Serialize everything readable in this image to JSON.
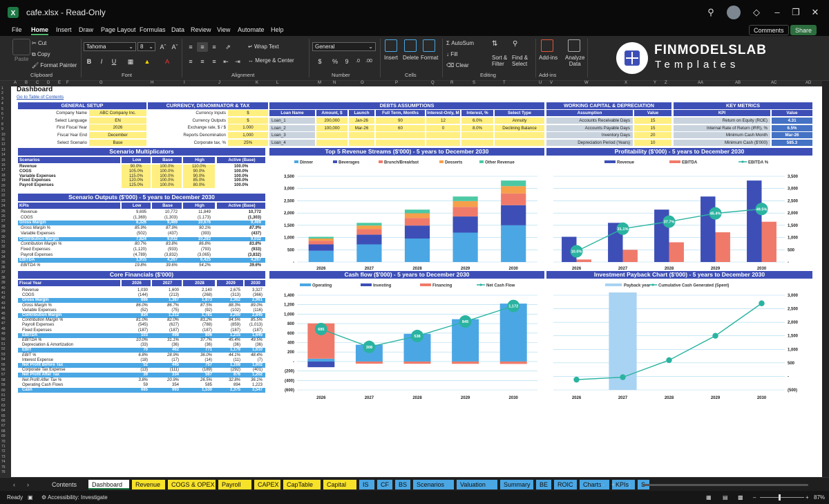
{
  "window": {
    "filename": "cafe.xlsx",
    "separator": "-",
    "mode": "Read-Only"
  },
  "menu": {
    "items": [
      "File",
      "Home",
      "Insert",
      "Draw",
      "Page Layout",
      "Formulas",
      "Data",
      "Review",
      "View",
      "Automate",
      "Help"
    ],
    "active": "Home",
    "comments": "Comments",
    "share": "Share"
  },
  "ribbon": {
    "paste": "Paste",
    "cut": "Cut",
    "copy": "Copy",
    "format_painter": "Format Painter",
    "clipboard": "Clipboard",
    "font_name": "Tahoma",
    "font_size": "8",
    "font": "Font",
    "alignment": "Alignment",
    "wrap_text": "Wrap Text",
    "merge_center": "Merge & Center",
    "number_format": "General",
    "number": "Number",
    "insert": "Insert",
    "delete": "Delete",
    "format": "Format",
    "cells": "Cells",
    "autosum": "AutoSum",
    "fill": "Fill",
    "clear": "Clear",
    "sort_filter": "Sort &\nFilter",
    "find_select": "Find &\nSelect",
    "editing": "Editing",
    "addins": "Add-ins",
    "analyze": "Analyze\nData",
    "logo_main": "FINMODELSLAB",
    "logo_sub": "Templates"
  },
  "columns": [
    "A",
    "B",
    "C",
    "D",
    "E",
    "F",
    "G",
    "H",
    "I",
    "J",
    "K",
    "L",
    "M",
    "N",
    "O",
    "P",
    "Q",
    "R",
    "S",
    "T",
    "U",
    "V",
    "W",
    "X",
    "Y",
    "Z",
    "AA",
    "AB",
    "AC",
    "AD"
  ],
  "sheet": {
    "title": "Dashboard",
    "toc_link": "Go to Table of Contents"
  },
  "general_setup": {
    "title": "GENERAL SETUP",
    "rows": [
      [
        "Company Name",
        "ABC Company Inc."
      ],
      [
        "Select Language",
        "EN"
      ],
      [
        "First Fiscal Year",
        "2026"
      ],
      [
        "Fiscal Year End",
        "December"
      ],
      [
        "Select Scenario",
        "Base"
      ]
    ]
  },
  "currency": {
    "title": "CURRENCY, DENOMINATOR & TAX",
    "rows": [
      [
        "Currency Inputs",
        "$"
      ],
      [
        "Currency Outputs",
        "$"
      ],
      [
        "Exchange rate, $ / $",
        "1.000"
      ],
      [
        "Reports Denomination",
        "1,000"
      ],
      [
        "Corporate tax, %",
        "25%"
      ]
    ]
  },
  "debts": {
    "title": "DEBTS ASSUMPTIONS",
    "headers": [
      "Loan Name",
      "Amount, $",
      "Launch",
      "Full Term, Months",
      "Interest-Only, M",
      "Interest, %",
      "Select Type"
    ],
    "rows": [
      [
        "Loan_1",
        "200,000",
        "Jan-26",
        "90",
        "12",
        "6.0%",
        "Annuity"
      ],
      [
        "Loan_2",
        "100,000",
        "Mar-26",
        "60",
        "0",
        "8.0%",
        "Declining Balance"
      ],
      [
        "Loan_3",
        "",
        "",
        "",
        "",
        "",
        ""
      ],
      [
        "Loan_4",
        "",
        "",
        "",
        "",
        "",
        ""
      ]
    ]
  },
  "working_capital": {
    "title": "WORKING CAPITAL & DEPRECIATION",
    "headers": [
      "Assumption",
      "Value"
    ],
    "rows": [
      [
        "Accounts Receivable Days",
        "15"
      ],
      [
        "Accounts Payable Days",
        "15"
      ],
      [
        "Inventory Days",
        "20"
      ],
      [
        "Depreciation Period (Years)",
        "10"
      ]
    ]
  },
  "key_metrics": {
    "title": "KEY METRICS",
    "headers": [
      "KPI",
      "Value"
    ],
    "rows": [
      [
        "Return on Equity (ROE)",
        "4.31"
      ],
      [
        "Internal Rate of Return (IRR), %",
        "6.5%"
      ],
      [
        "Minimum Cash Month",
        "Mar-26"
      ],
      [
        "Minimum Cash ($'000)",
        "585.3"
      ]
    ]
  },
  "scenario_multipliers": {
    "title": "Scenario Multiplicators",
    "headers": [
      "Scenarios",
      "Low",
      "Base",
      "High",
      "Active (Base)"
    ],
    "rows": [
      [
        "Revenue",
        "90.0%",
        "100.0%",
        "110.0%",
        "100.0%"
      ],
      [
        "COGS",
        "105.0%",
        "100.0%",
        "90.0%",
        "100.0%"
      ],
      [
        "Variable Expenses",
        "115.0%",
        "100.0%",
        "90.0%",
        "100.0%"
      ],
      [
        "Fixed Expenses",
        "120.0%",
        "100.0%",
        "85.0%",
        "100.0%"
      ],
      [
        "Payroll Expenses",
        "125.0%",
        "100.0%",
        "80.0%",
        "100.0%"
      ]
    ]
  },
  "scenario_outputs": {
    "title": "Scenario Outputs ($'000) - 5 years to December 2030",
    "headers": [
      "KPIs",
      "Low",
      "Base",
      "High",
      "Active (Base)"
    ],
    "rows": [
      [
        "Revenue",
        "9,695",
        "10,772",
        "11,849",
        "10,772",
        ""
      ],
      [
        "COGS",
        "(1,369)",
        "(1,303)",
        "(1,173)",
        "(1,303)",
        ""
      ],
      [
        "Gross Margin",
        "8,326",
        "9,469",
        "10,676",
        "9,469",
        "hl"
      ],
      [
        "Gross Margin %",
        "85.9%",
        "87.9%",
        "90.1%",
        "87.9%",
        "it"
      ],
      [
        "Variable Expenses",
        "(502)",
        "(437)",
        "(393)",
        "(437)",
        ""
      ],
      [
        "Contribution Margin",
        "7,824",
        "9,032",
        "10,283",
        "9,032",
        "hl"
      ],
      [
        "Contribution Margin %",
        "80.7%",
        "83.8%",
        "86.8%",
        "83.8%",
        "it"
      ],
      [
        "Fixed Expenses",
        "(1,120)",
        "(933)",
        "(793)",
        "(933)",
        ""
      ],
      [
        "Payroll Expenses",
        "(4,789)",
        "(3,832)",
        "(3,065)",
        "(3,832)",
        ""
      ],
      [
        "EBITDA",
        "1,915",
        "4,267",
        "6,425",
        "4,267",
        "hl"
      ],
      [
        "EBITDA %",
        "19.8%",
        "39.6%",
        "54.2%",
        "39.6%",
        "it"
      ]
    ]
  },
  "core_financials": {
    "title": "Core Financials ($'000)",
    "headers": [
      "Fiscal Year",
      "2026",
      "2027",
      "2028",
      "2029",
      "2030"
    ],
    "rows": [
      [
        "Revenue",
        "1,030",
        "1,600",
        "2,140",
        "2,675",
        "3,327",
        ""
      ],
      [
        "COGS",
        "(144)",
        "(213)",
        "(268)",
        "(313)",
        "(366)",
        ""
      ],
      [
        "Gross Margin",
        "886",
        "1,387",
        "1,873",
        "2,362",
        "2,961",
        "hl"
      ],
      [
        "Gross Margin %",
        "86.0%",
        "86.7%",
        "87.5%",
        "88.3%",
        "89.0%",
        "it"
      ],
      [
        "Variable Expenses",
        "(52)",
        "(75)",
        "(92)",
        "(102)",
        "(116)",
        ""
      ],
      [
        "Contribution Margin",
        "834",
        "1,312",
        "1,781",
        "2,260",
        "2,845",
        "hl"
      ],
      [
        "Contribution Margin %",
        "81.0%",
        "82.0%",
        "83.2%",
        "84.5%",
        "85.5%",
        "it"
      ],
      [
        "Payroll Expenses",
        "(545)",
        "(627)",
        "(788)",
        "(859)",
        "(1,013)",
        ""
      ],
      [
        "Fixed Expenses",
        "(187)",
        "(187)",
        "(187)",
        "(187)",
        "(187)",
        ""
      ],
      [
        "EBITDA",
        "103",
        "498",
        "806",
        "1,215",
        "1,645",
        "hl"
      ],
      [
        "EBITDA %",
        "10.0%",
        "31.1%",
        "37.7%",
        "45.4%",
        "49.5%",
        "it"
      ],
      [
        "Depreciation & Amortization",
        "(33)",
        "(36)",
        "(36)",
        "(36)",
        "(36)",
        ""
      ],
      [
        "EBIT",
        "70",
        "462",
        "771",
        "1,179",
        "1,610",
        "hl"
      ],
      [
        "EBIT %",
        "6.8%",
        "28.9%",
        "36.0%",
        "44.1%",
        "48.4%",
        "it"
      ],
      [
        "Interest Expense",
        "(18)",
        "(17)",
        "(14)",
        "(11)",
        "(7)",
        ""
      ],
      [
        "Net Profit Before Tax",
        "52",
        "445",
        "757",
        "1,168",
        "1,602",
        "hl"
      ],
      [
        "Corporate Tax Expense",
        "(13)",
        "(111)",
        "(189)",
        "(292)",
        "(401)",
        ""
      ],
      [
        "Net Profit After Tax",
        "39",
        "334",
        "567",
        "876",
        "1,202",
        "hl"
      ],
      [
        "Net Profit After Tax %",
        "3.8%",
        "20.9%",
        "26.5%",
        "32.8%",
        "36.1%",
        "it"
      ],
      [
        "Operating Cash Flows",
        "59",
        "354",
        "585",
        "894",
        "1,223",
        ""
      ],
      [
        "Cash",
        "685",
        "993",
        "1,530",
        "2,375",
        "3,547",
        "hl"
      ]
    ]
  },
  "chart_data": [
    {
      "type": "bar",
      "title": "Top 5 Revenue Streams ($'000) - 5 years to December 2030",
      "categories": [
        "2026",
        "2027",
        "2028",
        "2029",
        "2030"
      ],
      "stacked": true,
      "legend": "top",
      "series": [
        {
          "name": "Dinner",
          "color": "#4aa7e4",
          "values": [
            460,
            720,
            960,
            1200,
            1500
          ]
        },
        {
          "name": "Beverages",
          "color": "#3d4fb6",
          "values": [
            260,
            400,
            530,
            660,
            820
          ]
        },
        {
          "name": "Brunch/Breakfast",
          "color": "#f07a6a",
          "values": [
            150,
            230,
            310,
            390,
            480
          ]
        },
        {
          "name": "Desserts",
          "color": "#f5a04a",
          "values": [
            90,
            140,
            190,
            240,
            300
          ]
        },
        {
          "name": "Other Revenue",
          "color": "#4cc9a4",
          "values": [
            70,
            110,
            150,
            185,
            227
          ]
        }
      ],
      "yticks": [
        "3,500",
        "3,000",
        "2,500",
        "2,000",
        "1,500",
        "1,000",
        "500",
        "-"
      ],
      "ylim": [
        0,
        3500
      ]
    },
    {
      "type": "bar",
      "title": "Profitability ($'000) - 5 years to December 2030",
      "categories": [
        "2026",
        "2027",
        "2028",
        "2029",
        "2030"
      ],
      "legend": "top",
      "series": [
        {
          "name": "Revenue",
          "color": "#3d4fb6",
          "values": [
            1030,
            1600,
            2140,
            2675,
            3327
          ]
        },
        {
          "name": "EBITDA",
          "color": "#f07a6a",
          "values": [
            103,
            498,
            806,
            1215,
            1645
          ]
        },
        {
          "name": "EBITDA %",
          "color": "#2ab3a0",
          "type": "line",
          "values": [
            10.0,
            31.1,
            37.7,
            45.4,
            49.5
          ],
          "labels": [
            "10.0%",
            "31.1%",
            "37.7%",
            "45.4%",
            "49.5%"
          ]
        }
      ],
      "yticks": [
        "3,500",
        "3,000",
        "2,500",
        "2,000",
        "1,500",
        "1,000",
        "500",
        "-"
      ],
      "ylim": [
        0,
        3500
      ]
    },
    {
      "type": "bar",
      "title": "Cash flow ($'000) - 5 years to December 2030",
      "categories": [
        "2026",
        "2027",
        "2028",
        "2029",
        "2030"
      ],
      "stacked": true,
      "legend": "top",
      "series": [
        {
          "name": "Operating",
          "color": "#4aa7e4",
          "values": [
            59,
            354,
            585,
            894,
            1223
          ]
        },
        {
          "name": "Investing",
          "color": "#3d4fb6",
          "values": [
            -120,
            0,
            0,
            0,
            0
          ]
        },
        {
          "name": "Financing",
          "color": "#f07a6a",
          "values": [
            746,
            -46,
            -48,
            -49,
            -51
          ]
        },
        {
          "name": "Net Cash Flow",
          "color": "#2ab3a0",
          "type": "line",
          "values": [
            685,
            308,
            538,
            845,
            1172
          ],
          "labels": [
            "685",
            "308",
            "538",
            "845",
            "1,172"
          ]
        }
      ],
      "yticks": [
        "1,400",
        "1,200",
        "1,000",
        "800",
        "600",
        "400",
        "200",
        "-",
        "(200)",
        "(400)",
        "(600)"
      ],
      "ylim": [
        -600,
        1400
      ]
    },
    {
      "type": "bar",
      "title": "Investment Payback Chart ($'000) - 5 years to December 2030",
      "categories": [
        "2026",
        "2027",
        "2028",
        "2029",
        "2030"
      ],
      "legend": "top",
      "series": [
        {
          "name": "Payback year",
          "color": "#a9d3f2",
          "values": [
            0,
            1,
            0,
            0,
            0
          ]
        },
        {
          "name": "Cumulative Cash Generated (Spent)",
          "color": "#2ab3a0",
          "type": "line",
          "values": [
            -120,
            -30,
            600,
            1500,
            2700
          ]
        }
      ],
      "yticks": [
        "3,000",
        "2,500",
        "2,000",
        "1,500",
        "1,000",
        "500",
        "-",
        "(500)"
      ],
      "ylim": [
        -500,
        3000
      ]
    }
  ],
  "tabs": [
    {
      "label": "Contents",
      "color": "none"
    },
    {
      "label": "Dashboard",
      "color": "active"
    },
    {
      "label": "Revenue",
      "color": "#f7e22a"
    },
    {
      "label": "COGS & OPEX",
      "color": "#f7e22a"
    },
    {
      "label": "Payroll",
      "color": "#f7e22a"
    },
    {
      "label": "CAPEX",
      "color": "#f7e22a"
    },
    {
      "label": "CapTable",
      "color": "#f7e22a"
    },
    {
      "label": "Capital",
      "color": "#f7e22a"
    },
    {
      "label": "IS",
      "color": "#4aa7e4"
    },
    {
      "label": "CF",
      "color": "#4aa7e4"
    },
    {
      "label": "BS",
      "color": "#4aa7e4"
    },
    {
      "label": "Scenarios",
      "color": "#4aa7e4"
    },
    {
      "label": "Valuation",
      "color": "#4aa7e4"
    },
    {
      "label": "Summary",
      "color": "#4aa7e4"
    },
    {
      "label": "BE",
      "color": "#4aa7e4"
    },
    {
      "label": "ROIC",
      "color": "#4aa7e4"
    },
    {
      "label": "Charts",
      "color": "#4aa7e4"
    },
    {
      "label": "KPIs",
      "color": "#4aa7e4"
    },
    {
      "label": "S",
      "color": "#4aa7e4"
    }
  ],
  "status": {
    "ready": "Ready",
    "accessibility": "Accessibility: Investigate",
    "zoom": "87%"
  }
}
